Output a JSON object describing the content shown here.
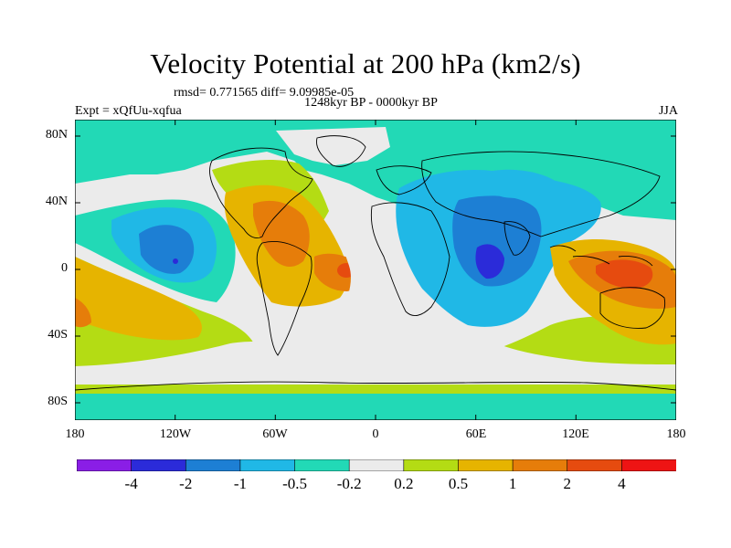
{
  "title": "Velocity Potential at 200 hPa (km2/s)",
  "stats": "rmsd= 0.771565 diff= 9.09985e-05",
  "period": "1248kyr BP - 0000kyr BP",
  "experiment": "Expt = xQfUu-xqfua",
  "season": "JJA",
  "y_ticks": [
    "80N",
    "40N",
    "0",
    "40S",
    "80S"
  ],
  "x_ticks": [
    "180",
    "120W",
    "60W",
    "0",
    "60E",
    "120E",
    "180"
  ],
  "colorbar": {
    "labels": [
      "-4",
      "-2",
      "-1",
      "-0.5",
      "-0.2",
      "0.2",
      "0.5",
      "1",
      "2",
      "4"
    ],
    "colors": [
      "#8a1ee6",
      "#2b2bd9",
      "#1d7fd4",
      "#20b8e6",
      "#22d9b6",
      "#ebebeb",
      "#b4dc14",
      "#e6b400",
      "#e67d0a",
      "#e64b0f",
      "#ee1414"
    ]
  },
  "map_colors": {
    "ocean_base": "#ebebeb",
    "land_outline": "#000000"
  }
}
